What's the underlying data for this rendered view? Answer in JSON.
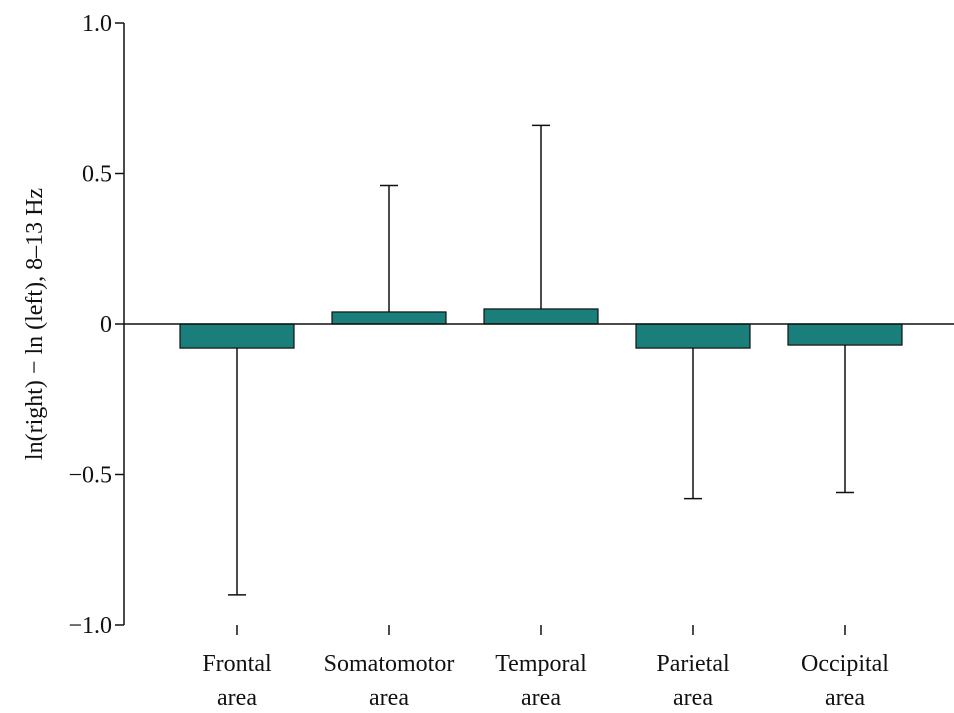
{
  "chart_data": {
    "type": "bar",
    "categories": [
      [
        "Frontal",
        "area"
      ],
      [
        "Somatomotor",
        "area"
      ],
      [
        "Temporal",
        "area"
      ],
      [
        "Parietal",
        "area"
      ],
      [
        "Occipital",
        "area"
      ]
    ],
    "values": [
      -0.08,
      0.04,
      0.05,
      -0.08,
      -0.07
    ],
    "error_ends": [
      -0.9,
      0.46,
      0.66,
      -0.58,
      -0.56
    ],
    "ylabel": "ln(right) − ln (left), 8–13 Hz",
    "xlabel": "",
    "ylim": [
      -1.0,
      1.0
    ],
    "yticks": [
      1.0,
      0.5,
      0,
      -0.5,
      -1.0
    ],
    "ytick_labels": [
      "1.0",
      "0.5",
      "0",
      "−0.5",
      "−1.0"
    ],
    "grid": false,
    "bar_color": "#1a7f7a",
    "zero_line": true
  }
}
